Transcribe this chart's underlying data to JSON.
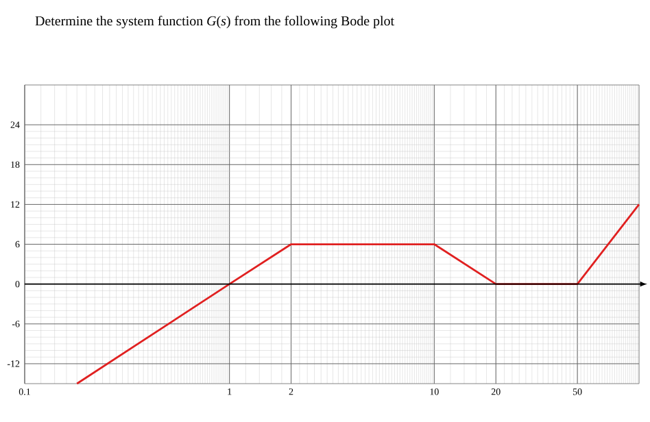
{
  "chart_data": {
    "type": "line",
    "title": "Determine the system function *G*(*s*) from the following Bode plot",
    "x": [
      0.18,
      1,
      2,
      10,
      20,
      50,
      100
    ],
    "series": [
      {
        "color": "#e02020",
        "values": [
          -15,
          0,
          6,
          6,
          0,
          0,
          12
        ]
      }
    ],
    "ref_lines": [
      {
        "axis": "y",
        "value": 0,
        "color": "#000000"
      }
    ],
    "log": "x",
    "grid": true,
    "marker": "none",
    "line_style": "solid",
    "xlim": [
      0.1,
      100
    ],
    "ylim": [
      -15,
      30
    ],
    "xticks": [
      0.1,
      1,
      2,
      10,
      20,
      50
    ],
    "yticks": [
      -12,
      -6,
      0,
      6,
      12,
      18,
      24
    ]
  }
}
